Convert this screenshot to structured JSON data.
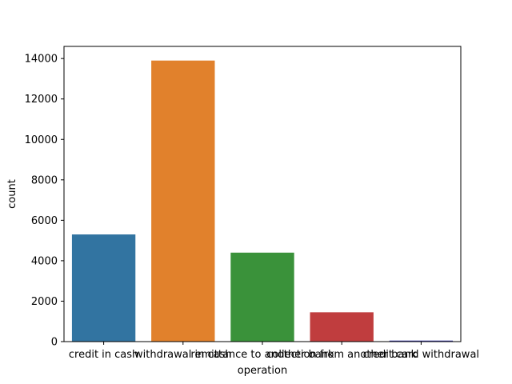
{
  "chart_data": {
    "type": "bar",
    "title": "",
    "xlabel": "operation",
    "ylabel": "count",
    "categories": [
      "credit in cash",
      "withdrawal in cash",
      "remittance to another bank",
      "collection from another bank",
      "credit card withdrawal"
    ],
    "values": [
      5300,
      13900,
      4400,
      1450,
      50
    ],
    "colors": [
      "#3274a1",
      "#e1812c",
      "#3a923a",
      "#c03d3e",
      "#3a3aa8"
    ],
    "ylim": [
      0,
      14600
    ],
    "yticks": [
      0,
      2000,
      4000,
      6000,
      8000,
      10000,
      12000,
      14000
    ],
    "ytick_labels": [
      "0",
      "2000",
      "4000",
      "6000",
      "8000",
      "10000",
      "12000",
      "14000"
    ],
    "grid": false,
    "legend": "none"
  }
}
